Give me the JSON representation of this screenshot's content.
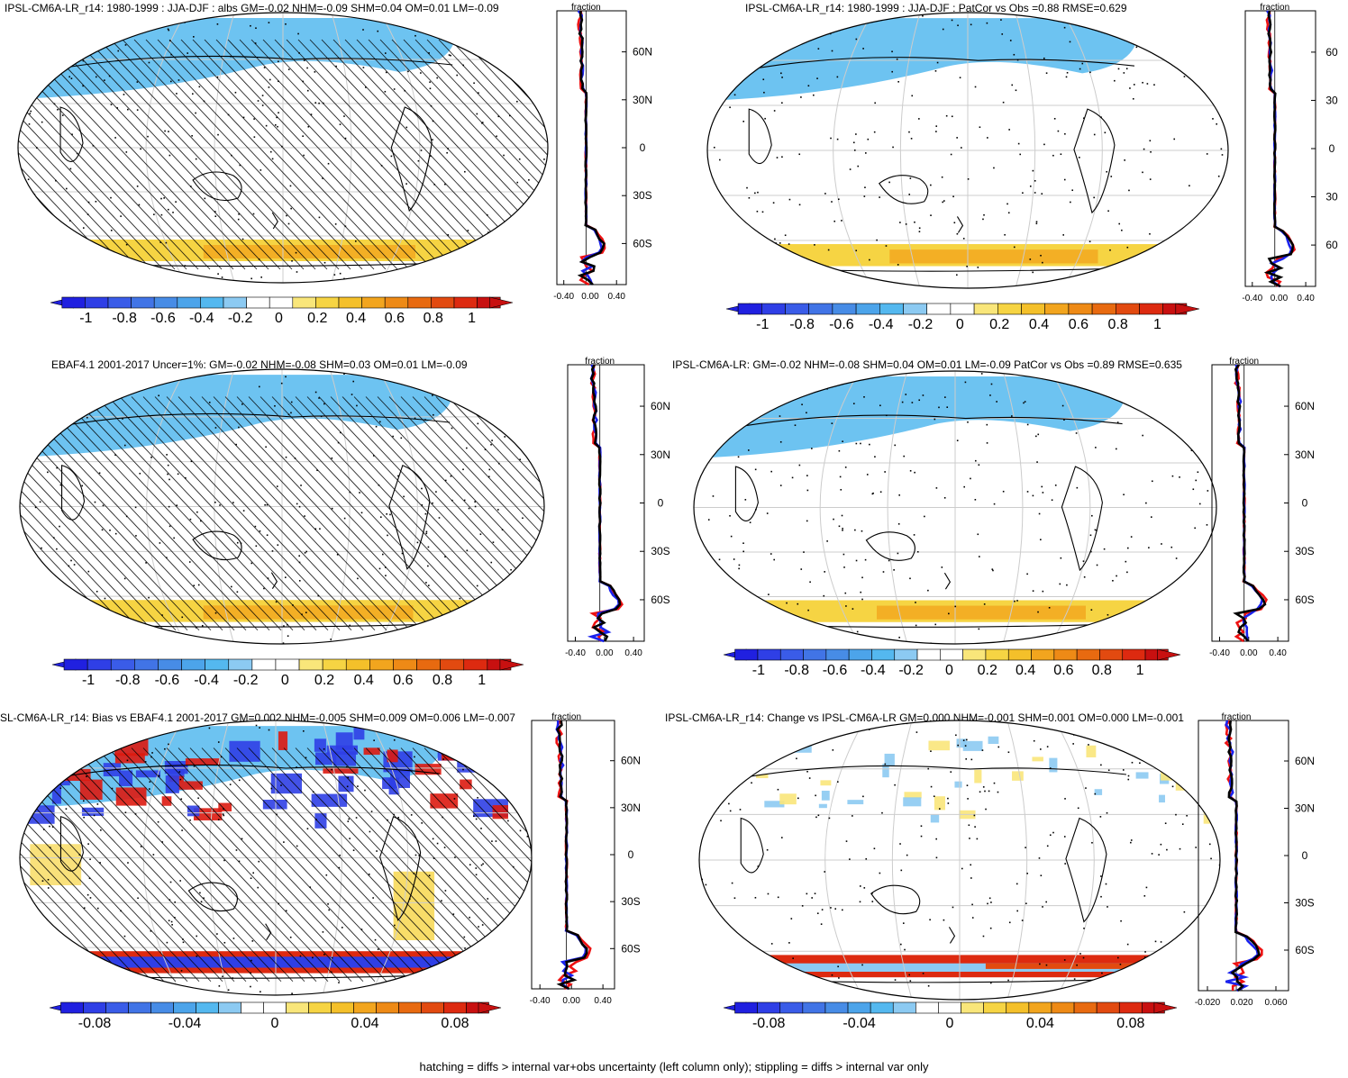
{
  "footnote": "hatching = diffs > internal var+obs uncertainty (left column only); stippling = diffs > internal var only",
  "colors": {
    "cb_main": [
      "#2020e0",
      "#2f3fe6",
      "#3a5ce8",
      "#4174e6",
      "#478ce6",
      "#4ca4ea",
      "#54b8ef",
      "#8ccaf2",
      "#ffffff",
      "#ffffff",
      "#f9e67a",
      "#f6d443",
      "#f4c02a",
      "#f2a51e",
      "#ee8a16",
      "#e86a10",
      "#e24a10",
      "#dd2a10",
      "#c81010"
    ],
    "cb_diff": [
      "#2020e0",
      "#2f3fe6",
      "#3a5ce8",
      "#4174e6",
      "#478ce6",
      "#4ca4ea",
      "#54b8ef",
      "#8ccaf2",
      "#ffffff",
      "#ffffff",
      "#f9e67a",
      "#f6d443",
      "#f4c02a",
      "#f2a51e",
      "#ee8a16",
      "#e86a10",
      "#e24a10",
      "#dd2a10",
      "#c81010"
    ],
    "zonal_red": "#ee1111",
    "zonal_blue": "#1a22ee",
    "zonal_black": "#000000"
  },
  "chart_data": [
    {
      "type": "heatmap",
      "title": "IPSL-CM6A-LR_r14: 1980-1999 : JJA-DJF : albs GM=-0.02 NHM=-0.09 SHM=0.04 OM=0.01 LM=-0.09",
      "colorbar_ticks": [
        "-1",
        "-0.8",
        "-0.6",
        "-0.4",
        "-0.2",
        "0",
        "0.2",
        "0.4",
        "0.6",
        "0.8",
        "1"
      ],
      "zonal": {
        "label": "fraction",
        "x_ticks": [
          "-0.40",
          "0.00",
          "0.40"
        ],
        "y_ticks": [
          "60N",
          "30N",
          "0",
          "30S",
          "60S"
        ]
      }
    },
    {
      "type": "heatmap",
      "title": "IPSL-CM6A-LR_r14: 1980-1999 : JJA-DJF : PatCor vs Obs =0.88 RMSE=0.629",
      "colorbar_ticks": [
        "-1",
        "-0.8",
        "-0.6",
        "-0.4",
        "-0.2",
        "0",
        "0.2",
        "0.4",
        "0.6",
        "0.8",
        "1"
      ],
      "zonal": {
        "label": "fraction",
        "x_ticks": [
          "-0.40",
          "0.00",
          "0.40"
        ],
        "y_ticks": [
          "60",
          "30",
          "0",
          "30",
          "60"
        ]
      }
    },
    {
      "type": "heatmap",
      "title": "EBAF4.1 2001-2017 Uncer=1%: GM=-0.02 NHM=-0.08 SHM=0.03 OM=0.01 LM=-0.09",
      "colorbar_ticks": [
        "-1",
        "-0.8",
        "-0.6",
        "-0.4",
        "-0.2",
        "0",
        "0.2",
        "0.4",
        "0.6",
        "0.8",
        "1"
      ],
      "zonal": {
        "label": "fraction",
        "x_ticks": [
          "-0.40",
          "0.00",
          "0.40"
        ],
        "y_ticks": [
          "60N",
          "30N",
          "0",
          "30S",
          "60S"
        ]
      }
    },
    {
      "type": "heatmap",
      "title": "IPSL-CM6A-LR: GM=-0.02 NHM=-0.08 SHM=0.04 OM=0.01 LM=-0.09 PatCor vs Obs =0.89 RMSE=0.635",
      "colorbar_ticks": [
        "-1",
        "-0.8",
        "-0.6",
        "-0.4",
        "-0.2",
        "0",
        "0.2",
        "0.4",
        "0.6",
        "0.8",
        "1"
      ],
      "zonal": {
        "label": "fraction",
        "x_ticks": [
          "-0.40",
          "0.00",
          "0.40"
        ],
        "y_ticks": [
          "60N",
          "30N",
          "0",
          "30S",
          "60S"
        ]
      }
    },
    {
      "type": "heatmap",
      "title": "SL-CM6A-LR_r14: Bias vs EBAF4.1 2001-2017 GM=0.002 NHM=-0.005 SHM=0.009 OM=0.006 LM=-0.007",
      "colorbar_ticks": [
        "-0.08",
        "-0.04",
        "0",
        "0.04",
        "0.08"
      ],
      "zonal": {
        "label": "fraction",
        "x_ticks": [
          "-0.40",
          "0.00",
          "0.40"
        ],
        "y_ticks": [
          "60N",
          "30N",
          "0",
          "30S",
          "60S"
        ]
      }
    },
    {
      "type": "heatmap",
      "title": "IPSL-CM6A-LR_r14: Change vs IPSL-CM6A-LR GM=0.000 NHM=-0.001 SHM=0.001 OM=0.000 LM=-0.001",
      "colorbar_ticks": [
        "-0.08",
        "-0.04",
        "0",
        "0.04",
        "0.08"
      ],
      "zonal": {
        "label": "fraction",
        "x_ticks": [
          "-0.020",
          "0.020",
          "0.060"
        ],
        "y_ticks": [
          "60N",
          "30N",
          "0",
          "30S",
          "60S"
        ]
      }
    }
  ]
}
